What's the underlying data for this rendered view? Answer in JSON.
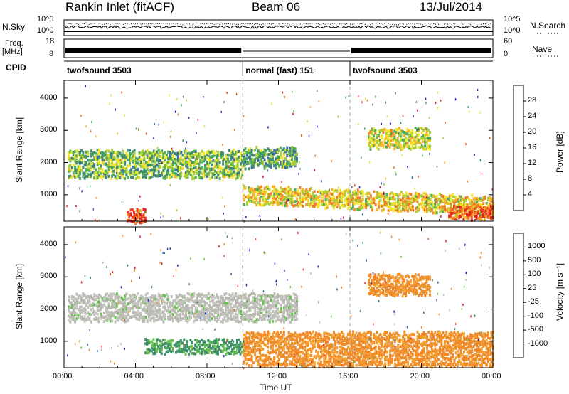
{
  "header": {
    "site": "Rankin Inlet (fitACF)",
    "beam": "Beam 06",
    "date": "13/Jul/2014"
  },
  "panel_labels": {
    "nsky": "N.Sky",
    "freq_line1": "Freq.",
    "freq_line2": "[MHz]",
    "cpid": "CPID",
    "nsearch": "N.Search",
    "nave": "Nave",
    "nsky_top_left": "10^5",
    "nsky_bot_left": "10^0",
    "nsky_top_right": "10^5",
    "nsky_bot_right": "10^0",
    "freq_top": "18",
    "freq_bot": "8",
    "nave_top": "60",
    "nave_bot": "0"
  },
  "cpid_segments": [
    {
      "label": "twofsound 3503",
      "start": 0,
      "end": 10
    },
    {
      "label": "normal (fast) 151",
      "start": 10,
      "end": 16
    },
    {
      "label": "twofsound 3503",
      "start": 16,
      "end": 24
    }
  ],
  "colors": {
    "power_scale": [
      "#0a1edc",
      "#2c3cb4",
      "#3b6fa4",
      "#3f8f6a",
      "#4fae56",
      "#a6cf3a",
      "#f3e42a",
      "#f6b427",
      "#f07f25",
      "#ec4e22",
      "#e8201e"
    ],
    "velocity_scale": [
      "#e8201e",
      "#ee5a22",
      "#f08a28",
      "#f3a334",
      "#b9b9b1",
      "#c3c3be",
      "#66c24e",
      "#3f8f6a",
      "#2f6aa2",
      "#1a34c8"
    ]
  },
  "chart_data": [
    {
      "type": "heatmap",
      "title": "",
      "xlabel": "Time UT",
      "ylabel": "Slant Range [km]",
      "xlim": [
        0,
        24
      ],
      "ylim": [
        180,
        4550
      ],
      "x_ticks": [
        "00:00",
        "04:00",
        "08:00",
        "12:00",
        "16:00",
        "20:00",
        "00:00"
      ],
      "y_ticks": [
        "1000",
        "2000",
        "3000",
        "4000"
      ],
      "colorbar": {
        "label": "Power [dB]",
        "range": [
          0,
          32
        ],
        "ticks": [
          "4",
          "8",
          "12",
          "16",
          "20",
          "24",
          "28"
        ]
      },
      "features": [
        {
          "name": "backscatter band",
          "t_start": 0.2,
          "t_end": 10.0,
          "range_km": [
            1600,
            2400
          ],
          "power_db": 14
        },
        {
          "name": "backscatter band",
          "t_start": 10.0,
          "t_end": 13.0,
          "range_km": [
            1900,
            2500
          ],
          "power_db": 12
        },
        {
          "name": "descending band",
          "t_start": 10.0,
          "t_end": 24.0,
          "range_km": [
            800,
            1300
          ],
          "power_db": 20
        },
        {
          "name": "late echoes",
          "t_start": 17.0,
          "t_end": 20.5,
          "range_km": [
            2500,
            3100
          ],
          "power_db": 18
        },
        {
          "name": "near-range patch",
          "t_start": 3.5,
          "t_end": 4.5,
          "range_km": [
            200,
            600
          ],
          "power_db": 30
        },
        {
          "name": "near-range patch",
          "t_start": 21.5,
          "t_end": 24.0,
          "range_km": [
            300,
            700
          ],
          "power_db": 28
        }
      ]
    },
    {
      "type": "heatmap",
      "title": "",
      "xlabel": "Time UT",
      "ylabel": "Slant Range [km]",
      "xlim": [
        0,
        24
      ],
      "ylim": [
        180,
        4550
      ],
      "x_ticks": [
        "00:00",
        "04:00",
        "08:00",
        "12:00",
        "16:00",
        "20:00",
        "00:00"
      ],
      "y_ticks": [
        "1000",
        "2000",
        "3000",
        "4000"
      ],
      "colorbar": {
        "label": "Velocity [m s⁻¹]",
        "ticks": [
          "1000",
          "500",
          "100",
          "25",
          "-25",
          "-100",
          "-500",
          "-1000"
        ]
      },
      "features": [
        {
          "name": "ground scatter",
          "t_start": 0.2,
          "t_end": 13.0,
          "range_km": [
            1700,
            2500
          ],
          "velocity": 0
        },
        {
          "name": "negative flow",
          "t_start": 4.5,
          "t_end": 10.0,
          "range_km": [
            700,
            1100
          ],
          "velocity": 150
        },
        {
          "name": "receding flow",
          "t_start": 10.0,
          "t_end": 24.0,
          "range_km": [
            300,
            1300
          ],
          "velocity": -200
        },
        {
          "name": "late echoes",
          "t_start": 17.0,
          "t_end": 20.5,
          "range_km": [
            2500,
            3100
          ],
          "velocity": -150
        }
      ]
    }
  ]
}
